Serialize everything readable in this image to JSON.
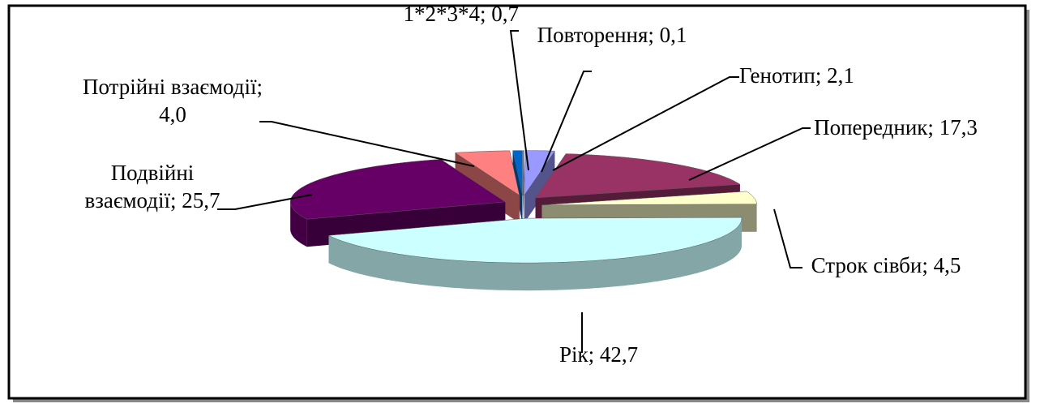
{
  "chart_data": {
    "type": "pie3d",
    "categories": [
      "Повторення",
      "Генотип",
      "Попередник",
      "Строк сівби",
      "Рік",
      "Подвійні взаємодії",
      "Потрійні взаємодії",
      "1*2*3*4"
    ],
    "values": [
      0.1,
      2.1,
      17.3,
      4.5,
      42.7,
      25.7,
      4.0,
      0.7
    ],
    "value_labels": [
      "0,1",
      "2,1",
      "17,3",
      "4,5",
      "42,7",
      "25,7",
      "4,0",
      "0,7"
    ],
    "label_separator": "; ",
    "colors": [
      "#9999ff",
      "#9999ff",
      "#993366",
      "#ffffcc",
      "#ccffff",
      "#660066",
      "#ff8080",
      "#0066cc"
    ]
  }
}
